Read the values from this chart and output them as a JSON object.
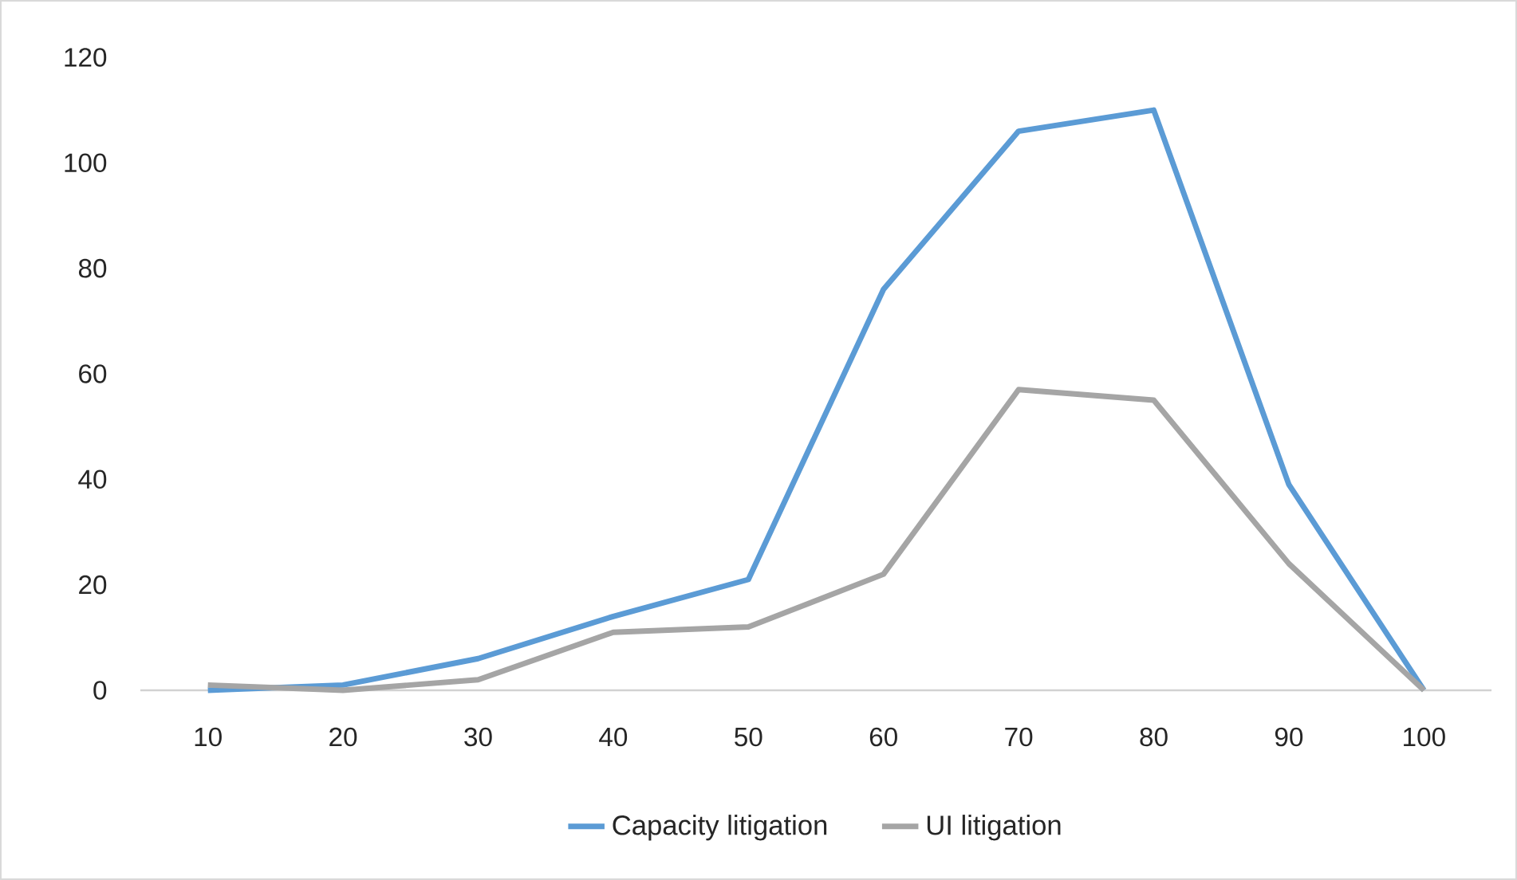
{
  "chart_data": {
    "type": "line",
    "categories": [
      "10",
      "20",
      "30",
      "40",
      "50",
      "60",
      "70",
      "80",
      "90",
      "100"
    ],
    "series": [
      {
        "name": "Capacity litigation",
        "color": "#5b9bd5",
        "values": [
          0,
          1,
          6,
          14,
          21,
          76,
          106,
          110,
          39,
          0
        ]
      },
      {
        "name": "UI litigation",
        "color": "#a5a5a5",
        "values": [
          1,
          0,
          2,
          11,
          12,
          22,
          57,
          55,
          24,
          0
        ]
      }
    ],
    "ylim": [
      0,
      120
    ],
    "yticks": [
      0,
      20,
      40,
      60,
      80,
      100,
      120
    ],
    "grid": false,
    "legend": "bottom"
  }
}
